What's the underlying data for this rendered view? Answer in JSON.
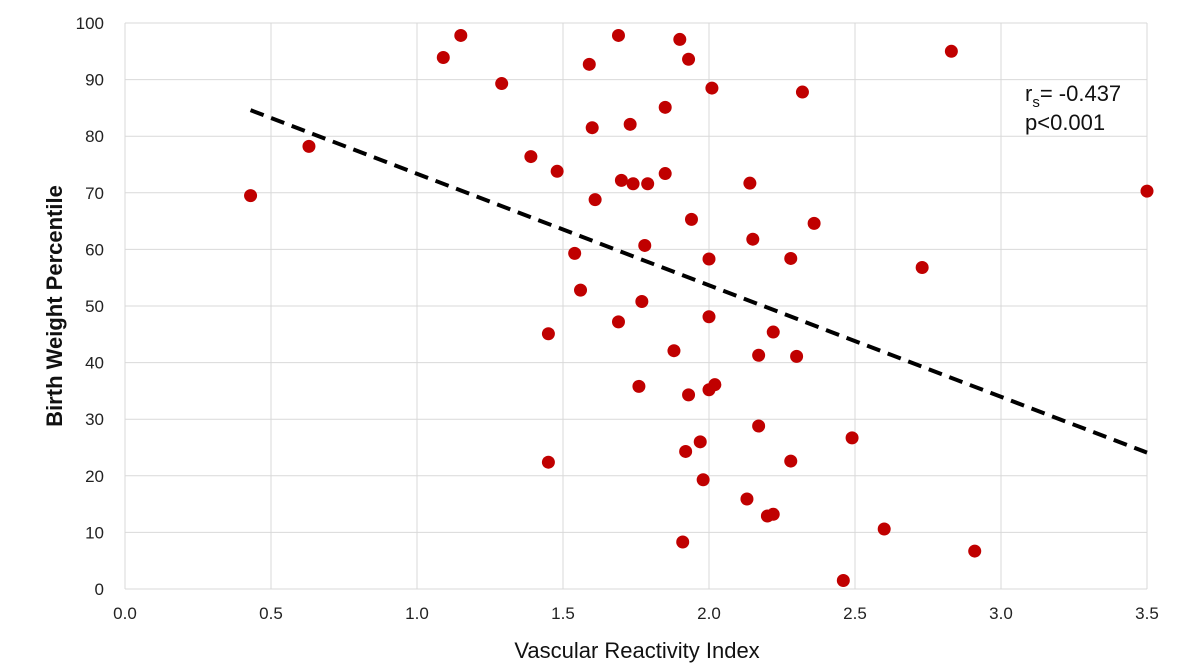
{
  "chart_data": {
    "type": "scatter",
    "title": "",
    "xlabel": "Vascular Reactivity Index",
    "ylabel": "Birth Weight Percentile",
    "xlim": [
      0,
      3.5
    ],
    "ylim": [
      0,
      100
    ],
    "x_ticks": [
      "0.0",
      "0.5",
      "1.0",
      "1.5",
      "2.0",
      "2.5",
      "3.0",
      "3.5"
    ],
    "y_ticks": [
      "0",
      "10",
      "20",
      "30",
      "40",
      "50",
      "60",
      "70",
      "80",
      "90",
      "100"
    ],
    "grid": true,
    "marker_color": "#C00000",
    "points": [
      {
        "x": 0.43,
        "y": 69.5
      },
      {
        "x": 0.63,
        "y": 78.2
      },
      {
        "x": 1.09,
        "y": 93.9
      },
      {
        "x": 1.15,
        "y": 97.8
      },
      {
        "x": 1.29,
        "y": 89.3
      },
      {
        "x": 1.39,
        "y": 76.4
      },
      {
        "x": 1.45,
        "y": 45.1
      },
      {
        "x": 1.45,
        "y": 22.4
      },
      {
        "x": 1.48,
        "y": 73.8
      },
      {
        "x": 1.54,
        "y": 59.3
      },
      {
        "x": 1.56,
        "y": 52.8
      },
      {
        "x": 1.59,
        "y": 92.7
      },
      {
        "x": 1.6,
        "y": 81.5
      },
      {
        "x": 1.61,
        "y": 68.8
      },
      {
        "x": 1.69,
        "y": 97.8
      },
      {
        "x": 1.69,
        "y": 47.2
      },
      {
        "x": 1.7,
        "y": 72.2
      },
      {
        "x": 1.73,
        "y": 82.1
      },
      {
        "x": 1.74,
        "y": 71.6
      },
      {
        "x": 1.76,
        "y": 35.8
      },
      {
        "x": 1.77,
        "y": 50.8
      },
      {
        "x": 1.78,
        "y": 60.7
      },
      {
        "x": 1.79,
        "y": 71.6
      },
      {
        "x": 1.85,
        "y": 85.1
      },
      {
        "x": 1.85,
        "y": 73.4
      },
      {
        "x": 1.88,
        "y": 42.1
      },
      {
        "x": 1.9,
        "y": 97.1
      },
      {
        "x": 1.91,
        "y": 8.3
      },
      {
        "x": 1.92,
        "y": 24.3
      },
      {
        "x": 1.93,
        "y": 93.6
      },
      {
        "x": 1.93,
        "y": 34.3
      },
      {
        "x": 1.94,
        "y": 65.3
      },
      {
        "x": 1.97,
        "y": 26.0
      },
      {
        "x": 1.98,
        "y": 19.3
      },
      {
        "x": 2.0,
        "y": 58.3
      },
      {
        "x": 2.0,
        "y": 48.1
      },
      {
        "x": 2.0,
        "y": 35.2
      },
      {
        "x": 2.01,
        "y": 88.5
      },
      {
        "x": 2.02,
        "y": 36.1
      },
      {
        "x": 2.13,
        "y": 15.9
      },
      {
        "x": 2.14,
        "y": 71.7
      },
      {
        "x": 2.15,
        "y": 61.8
      },
      {
        "x": 2.17,
        "y": 41.3
      },
      {
        "x": 2.17,
        "y": 28.8
      },
      {
        "x": 2.2,
        "y": 12.9
      },
      {
        "x": 2.22,
        "y": 45.4
      },
      {
        "x": 2.22,
        "y": 13.2
      },
      {
        "x": 2.28,
        "y": 58.4
      },
      {
        "x": 2.28,
        "y": 22.6
      },
      {
        "x": 2.3,
        "y": 41.1
      },
      {
        "x": 2.32,
        "y": 87.8
      },
      {
        "x": 2.36,
        "y": 64.6
      },
      {
        "x": 2.46,
        "y": 1.5
      },
      {
        "x": 2.49,
        "y": 26.7
      },
      {
        "x": 2.6,
        "y": 10.6
      },
      {
        "x": 2.73,
        "y": 56.8
      },
      {
        "x": 2.83,
        "y": 95.0
      },
      {
        "x": 2.91,
        "y": 6.7
      },
      {
        "x": 3.5,
        "y": 70.3
      }
    ],
    "trendline": {
      "style": "dashed",
      "color": "#000000",
      "x": [
        0.43,
        3.5
      ],
      "y": [
        84.6,
        24.1
      ]
    },
    "annotation": {
      "r_prefix": "r",
      "r_subscript": "s",
      "r_value": "= -0.437",
      "p_text": "p<0.001"
    }
  }
}
